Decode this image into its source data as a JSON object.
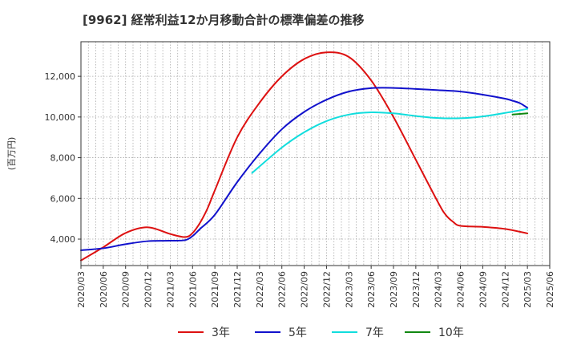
{
  "chart_data": {
    "type": "line",
    "title": "[9962]  経常利益12か月移動合計の標準偏差の推移",
    "ylabel": "(百万円)",
    "xlabel": "",
    "ylim": [
      2700,
      13700
    ],
    "yticks": [
      4000,
      6000,
      8000,
      10000,
      12000
    ],
    "ytick_labels": [
      "4,000",
      "6,000",
      "8,000",
      "10,000",
      "12,000"
    ],
    "xticks": [
      "2020/03",
      "2020/06",
      "2020/09",
      "2020/12",
      "2021/03",
      "2021/06",
      "2021/09",
      "2021/12",
      "2022/03",
      "2022/06",
      "2022/09",
      "2022/12",
      "2023/03",
      "2023/06",
      "2023/09",
      "2023/12",
      "2024/03",
      "2024/06",
      "2024/09",
      "2024/12",
      "2025/03",
      "2025/06"
    ],
    "grid": true,
    "legend_position": "bottom",
    "series": [
      {
        "name": "3年",
        "color": "#dd1111",
        "points": [
          [
            "2020/03",
            2950
          ],
          [
            "2020/06",
            3600
          ],
          [
            "2020/09",
            4300
          ],
          [
            "2020/12",
            4580
          ],
          [
            "2021/03",
            4250
          ],
          [
            "2021/05",
            4100
          ],
          [
            "2021/06",
            4300
          ],
          [
            "2021/07",
            4800
          ],
          [
            "2021/08",
            5500
          ],
          [
            "2021/09",
            6400
          ],
          [
            "2021/12",
            9000
          ],
          [
            "2022/03",
            10700
          ],
          [
            "2022/06",
            12000
          ],
          [
            "2022/09",
            12850
          ],
          [
            "2022/12",
            13180
          ],
          [
            "2023/03",
            12950
          ],
          [
            "2023/06",
            11800
          ],
          [
            "2023/09",
            10000
          ],
          [
            "2023/12",
            7900
          ],
          [
            "2024/03",
            5800
          ],
          [
            "2024/04",
            5200
          ],
          [
            "2024/05",
            4850
          ],
          [
            "2024/06",
            4650
          ],
          [
            "2024/09",
            4600
          ],
          [
            "2024/12",
            4500
          ],
          [
            "2025/03",
            4280
          ]
        ]
      },
      {
        "name": "5年",
        "color": "#1111cc",
        "points": [
          [
            "2020/03",
            3450
          ],
          [
            "2020/06",
            3550
          ],
          [
            "2020/09",
            3750
          ],
          [
            "2020/12",
            3900
          ],
          [
            "2021/03",
            3920
          ],
          [
            "2021/05",
            3950
          ],
          [
            "2021/06",
            4150
          ],
          [
            "2021/07",
            4500
          ],
          [
            "2021/09",
            5200
          ],
          [
            "2021/12",
            6800
          ],
          [
            "2022/03",
            8200
          ],
          [
            "2022/06",
            9400
          ],
          [
            "2022/09",
            10250
          ],
          [
            "2022/12",
            10850
          ],
          [
            "2023/03",
            11250
          ],
          [
            "2023/06",
            11420
          ],
          [
            "2023/09",
            11430
          ],
          [
            "2023/12",
            11380
          ],
          [
            "2024/03",
            11320
          ],
          [
            "2024/06",
            11250
          ],
          [
            "2024/09",
            11100
          ],
          [
            "2024/12",
            10900
          ],
          [
            "2025/01",
            10800
          ],
          [
            "2025/02",
            10680
          ],
          [
            "2025/03",
            10450
          ]
        ]
      },
      {
        "name": "7年",
        "color": "#11dddd",
        "points": [
          [
            "2022/02",
            7250
          ],
          [
            "2022/06",
            8500
          ],
          [
            "2022/09",
            9250
          ],
          [
            "2022/12",
            9800
          ],
          [
            "2023/03",
            10120
          ],
          [
            "2023/06",
            10230
          ],
          [
            "2023/09",
            10180
          ],
          [
            "2023/12",
            10050
          ],
          [
            "2024/03",
            9950
          ],
          [
            "2024/06",
            9940
          ],
          [
            "2024/09",
            10030
          ],
          [
            "2024/12",
            10200
          ],
          [
            "2025/03",
            10400
          ]
        ]
      },
      {
        "name": "10年",
        "color": "#118811",
        "points": [
          [
            "2025/01",
            10120
          ],
          [
            "2025/03",
            10180
          ]
        ]
      }
    ]
  }
}
